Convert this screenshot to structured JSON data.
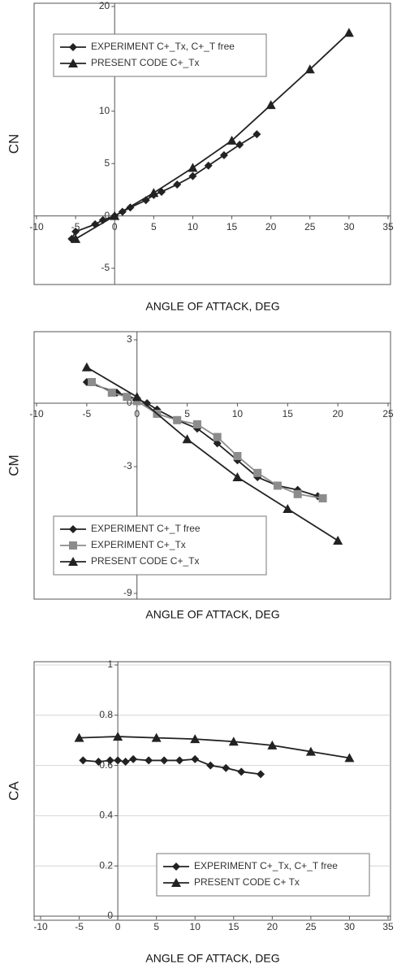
{
  "chart_data": [
    {
      "type": "line",
      "y_label": "CN",
      "x_label": "ANGLE OF ATTACK, DEG",
      "xlim": [
        -10,
        35
      ],
      "xticks": [
        -10,
        -5,
        0,
        5,
        10,
        15,
        20,
        25,
        30,
        35
      ],
      "ylim": [
        -5,
        20
      ],
      "yticks": [
        -5,
        0,
        5,
        10,
        20
      ],
      "grid": false,
      "legend": "upper left",
      "series": [
        {
          "name": "EXPERIMENT C+_Tx, C+_T free",
          "color": "#222222",
          "marker": "diamond",
          "x": [
            -5.5,
            -5,
            -2.5,
            -1.5,
            0,
            1,
            2,
            4,
            5,
            6,
            8,
            10,
            12,
            14,
            16,
            18.2
          ],
          "values": [
            -2.2,
            -1.5,
            -0.8,
            -0.4,
            0,
            0.4,
            0.8,
            1.5,
            2,
            2.3,
            3,
            3.8,
            4.8,
            5.8,
            6.8,
            7.8
          ]
        },
        {
          "name": "PRESENT CODE C+_Tx",
          "color": "#222222",
          "marker": "triangle",
          "x": [
            -5,
            0,
            5,
            10,
            15,
            20,
            25,
            30
          ],
          "values": [
            -2.2,
            0,
            2.2,
            4.6,
            7.2,
            10.6,
            14,
            17.5
          ]
        }
      ]
    },
    {
      "type": "line",
      "y_label": "CM",
      "x_label": "ANGLE OF ATTACK, DEG",
      "xlim": [
        -10,
        25
      ],
      "xticks": [
        -10,
        -5,
        0,
        5,
        10,
        15,
        20,
        25
      ],
      "ylim": [
        -9,
        3
      ],
      "yticks": [
        -9,
        -3,
        0,
        3
      ],
      "grid": false,
      "legend": "lower left",
      "series": [
        {
          "name": "EXPERIMENT C+_T free",
          "color": "#222222",
          "marker": "diamond",
          "x": [
            -5,
            -2,
            0,
            1,
            2,
            4,
            6,
            8,
            10,
            12,
            14,
            16,
            18
          ],
          "values": [
            1,
            0.5,
            0.2,
            0,
            -0.3,
            -0.8,
            -1.2,
            -1.9,
            -2.7,
            -3.5,
            -3.9,
            -4.1,
            -4.4
          ]
        },
        {
          "name": "EXPERIMENT C+_Tx",
          "color": "#8c8c8c",
          "marker": "square",
          "x": [
            -4.5,
            -2.5,
            -1,
            0,
            2,
            4,
            6,
            8,
            10,
            12,
            14,
            16,
            18.5
          ],
          "values": [
            1,
            0.5,
            0.3,
            0.1,
            -0.5,
            -0.8,
            -1,
            -1.6,
            -2.5,
            -3.3,
            -3.9,
            -4.3,
            -4.5
          ]
        },
        {
          "name": "PRESENT CODE C+_Tx",
          "color": "#222222",
          "marker": "triangle",
          "x": [
            -5,
            0,
            5,
            10,
            15,
            20
          ],
          "values": [
            1.7,
            0.3,
            -1.7,
            -3.5,
            -5,
            -6.5
          ]
        }
      ]
    },
    {
      "type": "line",
      "y_label": "CA",
      "x_label": "ANGLE OF ATTACK, DEG",
      "xlim": [
        -10,
        35
      ],
      "xticks": [
        -10,
        -5,
        0,
        5,
        10,
        15,
        20,
        25,
        30,
        35
      ],
      "ylim": [
        0,
        1
      ],
      "yticks": [
        0,
        0.2,
        0.4,
        0.6,
        0.8,
        1
      ],
      "grid": true,
      "legend": "lower right",
      "series": [
        {
          "name": "EXPERIMENT C+_Tx, C+_T free",
          "color": "#222222",
          "marker": "diamond",
          "x": [
            -4.5,
            -2.5,
            -1,
            0,
            1,
            2,
            4,
            6,
            8,
            10,
            12,
            14,
            16,
            18.5
          ],
          "values": [
            0.62,
            0.615,
            0.62,
            0.62,
            0.615,
            0.625,
            0.62,
            0.62,
            0.62,
            0.625,
            0.6,
            0.59,
            0.575,
            0.565
          ]
        },
        {
          "name": "PRESENT CODE C+ Tx",
          "color": "#222222",
          "marker": "triangle",
          "x": [
            -5,
            0,
            5,
            10,
            15,
            20,
            25,
            30
          ],
          "values": [
            0.71,
            0.715,
            0.71,
            0.705,
            0.695,
            0.68,
            0.655,
            0.63
          ]
        }
      ]
    }
  ]
}
